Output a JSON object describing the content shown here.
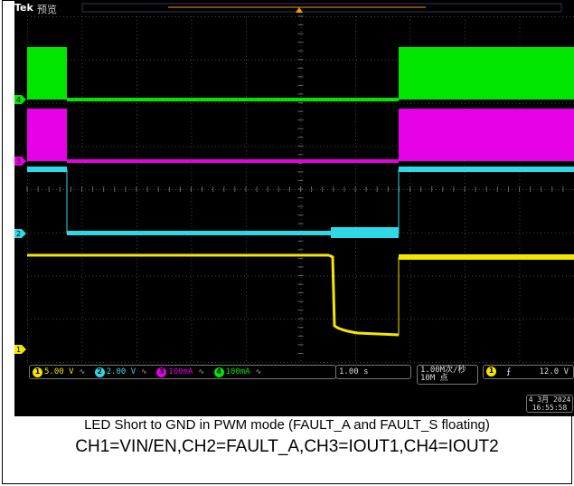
{
  "scope": {
    "brand": "Tek",
    "mode": "预览",
    "channels": [
      {
        "id": "1",
        "label": "1",
        "scale": "5.00 V",
        "color": "#f5e600",
        "name": "VIN/EN"
      },
      {
        "id": "2",
        "label": "2",
        "scale": "2.00 V",
        "color": "#2fd8e6",
        "name": "FAULT_A"
      },
      {
        "id": "3",
        "label": "3",
        "scale": "100mA",
        "color": "#e600e6",
        "name": "IOUT1"
      },
      {
        "id": "4",
        "label": "4",
        "scale": "100mA",
        "color": "#00e600",
        "name": "IOUT2"
      }
    ],
    "timebase": "1.00 s",
    "sample_rate": "1.00M次/秒",
    "record_length": "10M 点",
    "trigger_channel": "1",
    "trigger_slope": "rising",
    "trigger_level": "12.0 V",
    "date": "4 3月 2024",
    "time": "16:55:58"
  },
  "caption": {
    "line1": "LED Short to GND in PWM mode (FAULT_A and FAULT_S floating)",
    "line2": "CH1=VIN/EN,CH2=FAULT_A,CH3=IOUT1,CH4=IOUT2"
  },
  "chart_data": {
    "type": "line",
    "time_divisions": 10,
    "time_per_division": "1.00 s",
    "series": [
      {
        "name": "CH1=VIN/EN",
        "color": "#f5e600",
        "note": "steady high, dips during fault interval then recovers"
      },
      {
        "name": "CH2=FAULT_A",
        "color": "#2fd8e6",
        "note": "drops low after first pulse, noisy step near fault, returns high"
      },
      {
        "name": "CH3=IOUT1",
        "color": "#e600e6",
        "note": "PWM burst, flat during fault, PWM resumes"
      },
      {
        "name": "CH4=IOUT2",
        "color": "#00e600",
        "note": "PWM burst, flat during fault, PWM resumes"
      }
    ]
  }
}
